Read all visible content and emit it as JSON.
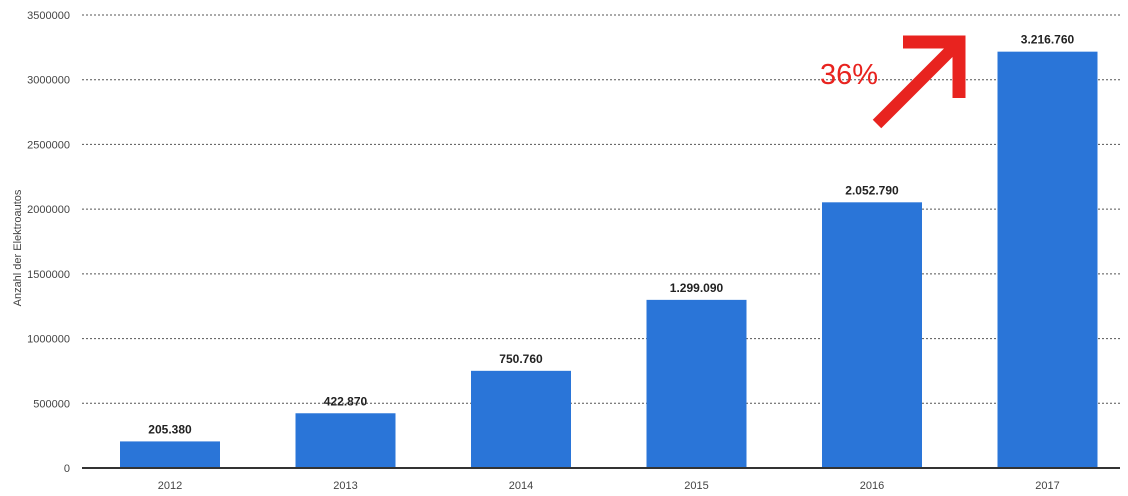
{
  "chart_data": {
    "type": "bar",
    "categories": [
      "2012",
      "2013",
      "2014",
      "2015",
      "2016",
      "2017"
    ],
    "values": [
      205380,
      422870,
      750760,
      1299090,
      2052790,
      3216760
    ],
    "data_labels": [
      "205.380",
      "422.870",
      "750.760",
      "1.299.090",
      "2.052.790",
      "3.216.760"
    ],
    "title": "",
    "xlabel": "",
    "ylabel": "Anzahl der Elektroautos",
    "ylim": [
      0,
      3500000
    ],
    "yticks": [
      0,
      500000,
      1000000,
      1500000,
      2000000,
      2500000,
      3000000,
      3500000
    ],
    "ytick_labels": [
      "0",
      "500000",
      "1000000",
      "1500000",
      "2000000",
      "2500000",
      "3000000",
      "3500000"
    ],
    "grid": true,
    "bar_color": "#2a75d8",
    "annotation": {
      "text": "36%",
      "color": "#e8231f",
      "arrow": "up-right"
    }
  }
}
